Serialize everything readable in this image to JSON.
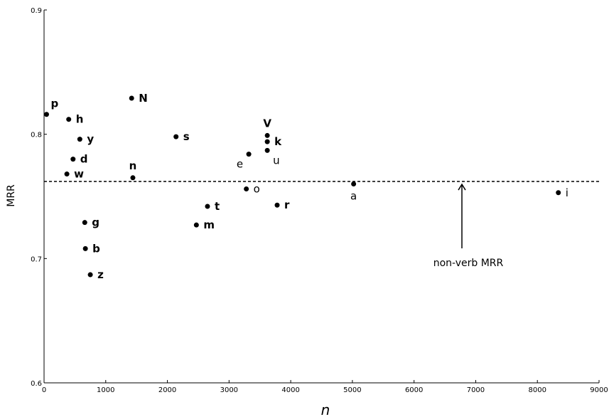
{
  "chart_data": {
    "type": "scatter",
    "title": "",
    "xlabel": "n",
    "ylabel": "MRR",
    "xlim": [
      0,
      9000
    ],
    "ylim": [
      0.6,
      0.9
    ],
    "x_ticks": [
      0,
      1000,
      2000,
      3000,
      4000,
      5000,
      6000,
      7000,
      8000,
      9000
    ],
    "y_ticks": [
      0.6,
      0.7,
      0.8,
      0.9
    ],
    "grid": false,
    "reference_line": {
      "y": 0.762,
      "style": "dashed",
      "label": "non-verb MRR"
    },
    "points": [
      {
        "label": "p",
        "x": 40,
        "y": 0.816,
        "bold": true,
        "pos": "above-right"
      },
      {
        "label": "h",
        "x": 400,
        "y": 0.812,
        "bold": true,
        "pos": "right"
      },
      {
        "label": "y",
        "x": 580,
        "y": 0.796,
        "bold": true,
        "pos": "right"
      },
      {
        "label": "d",
        "x": 470,
        "y": 0.78,
        "bold": true,
        "pos": "right"
      },
      {
        "label": "w",
        "x": 370,
        "y": 0.768,
        "bold": true,
        "pos": "right"
      },
      {
        "label": "N",
        "x": 1420,
        "y": 0.829,
        "bold": true,
        "pos": "right"
      },
      {
        "label": "n",
        "x": 1440,
        "y": 0.765,
        "bold": true,
        "pos": "above"
      },
      {
        "label": "g",
        "x": 660,
        "y": 0.729,
        "bold": true,
        "pos": "right"
      },
      {
        "label": "b",
        "x": 670,
        "y": 0.708,
        "bold": true,
        "pos": "right"
      },
      {
        "label": "z",
        "x": 750,
        "y": 0.687,
        "bold": true,
        "pos": "right"
      },
      {
        "label": "s",
        "x": 2140,
        "y": 0.798,
        "bold": true,
        "pos": "right"
      },
      {
        "label": "t",
        "x": 2650,
        "y": 0.742,
        "bold": true,
        "pos": "right"
      },
      {
        "label": "m",
        "x": 2470,
        "y": 0.727,
        "bold": true,
        "pos": "right"
      },
      {
        "label": "V",
        "x": 3620,
        "y": 0.799,
        "bold": true,
        "pos": "above"
      },
      {
        "label": "k",
        "x": 3620,
        "y": 0.794,
        "bold": true,
        "pos": "right"
      },
      {
        "label": "u",
        "x": 3620,
        "y": 0.787,
        "bold": false,
        "pos": "below-right"
      },
      {
        "label": "e",
        "x": 3320,
        "y": 0.784,
        "bold": false,
        "pos": "below-left"
      },
      {
        "label": "o",
        "x": 3280,
        "y": 0.756,
        "bold": false,
        "pos": "right"
      },
      {
        "label": "r",
        "x": 3780,
        "y": 0.743,
        "bold": true,
        "pos": "right"
      },
      {
        "label": "a",
        "x": 5020,
        "y": 0.76,
        "bold": false,
        "pos": "below"
      },
      {
        "label": "i",
        "x": 8340,
        "y": 0.753,
        "bold": false,
        "pos": "right"
      }
    ]
  }
}
